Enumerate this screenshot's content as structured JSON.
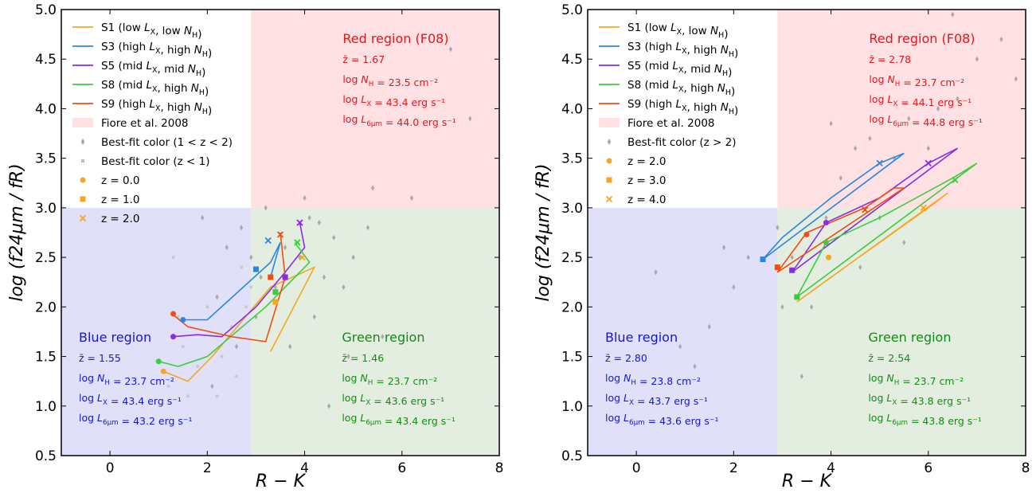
{
  "chart_data": [
    {
      "type": "scatter",
      "panel": "left",
      "xlabel": "R − K",
      "ylabel": "log (f24μm / fR)",
      "xlim": [
        -1,
        8
      ],
      "ylim": [
        0.5,
        5.0
      ],
      "xticks": [
        "0",
        "2",
        "4",
        "6",
        "8"
      ],
      "yticks": [
        "0.5",
        "1.0",
        "1.5",
        "2.0",
        "2.5",
        "3.0",
        "3.5",
        "4.0",
        "4.5",
        "5.0"
      ],
      "regions": {
        "red": {
          "title": "Red region (F08)",
          "stats": [
            "z̄ = 1.67",
            "log N_H = 23.5 cm⁻²",
            "log L_X = 43.4 erg s⁻¹",
            "log L_6μm = 44.0 erg s⁻¹"
          ]
        },
        "blue": {
          "title": "Blue region",
          "stats": [
            "z̄ = 1.55",
            "log N_H = 23.7 cm⁻²",
            "log L_X = 43.4 erg s⁻¹",
            "log L_6μm = 43.2 erg s⁻¹"
          ]
        },
        "green": {
          "title": "Green region",
          "stats": [
            "z̄ = 1.46",
            "log N_H = 23.7 cm⁻²",
            "log L_X = 43.6 erg s⁻¹",
            "log L_6μm = 43.4 erg s⁻¹"
          ]
        }
      },
      "legend": [
        {
          "kind": "line",
          "color": "#f5a623",
          "label": "S1 (low L_X, low N_H)"
        },
        {
          "kind": "line",
          "color": "#2b86e0",
          "label": "S3 (high L_X, high N_H)"
        },
        {
          "kind": "line",
          "color": "#8a2be2",
          "label": "S5 (mid L_X, mid N_H)"
        },
        {
          "kind": "line",
          "color": "#3ccc3c",
          "label": "S8 (mid L_X, high N_H)"
        },
        {
          "kind": "line",
          "color": "#f04e12",
          "label": "S9 (high L_X, high N_H)"
        },
        {
          "kind": "patch",
          "color": "#ffe0e3",
          "label": "Fiore et al. 2008"
        },
        {
          "kind": "diamond",
          "color": "#a9a9a9",
          "label": "Best-fit color (1 < z < 2)"
        },
        {
          "kind": "square",
          "color": "#bdbdbd",
          "label": "Best-fit color (z < 1)"
        },
        {
          "kind": "circle",
          "color": "#f5a623",
          "label": "z = 0.0"
        },
        {
          "kind": "squaremk",
          "color": "#f5a623",
          "label": "z = 1.0"
        },
        {
          "kind": "x",
          "color": "#f5a623",
          "label": "z = 2.0"
        }
      ],
      "series": [
        {
          "name": "S1",
          "color": "#f5a623",
          "x": [
            1.1,
            1.6,
            2.1,
            3.3,
            4.2,
            3.3
          ],
          "y": [
            1.35,
            1.25,
            1.5,
            2.2,
            2.4,
            1.55
          ]
        },
        {
          "name": "S3",
          "color": "#2b86e0",
          "x": [
            1.5,
            2.0,
            3.3,
            3.5,
            3.3
          ],
          "y": [
            1.87,
            1.87,
            2.45,
            2.65,
            2.3
          ]
        },
        {
          "name": "S5",
          "color": "#8a2be2",
          "x": [
            1.3,
            1.8,
            2.3,
            3.0,
            3.6,
            4.0,
            3.9
          ],
          "y": [
            1.7,
            1.72,
            1.7,
            2.0,
            2.35,
            2.6,
            2.85
          ]
        },
        {
          "name": "S8",
          "color": "#3ccc3c",
          "x": [
            1.0,
            1.4,
            2.0,
            3.2,
            4.1,
            3.8
          ],
          "y": [
            1.45,
            1.4,
            1.5,
            2.0,
            2.45,
            2.65
          ]
        },
        {
          "name": "S9",
          "color": "#f04e12",
          "x": [
            1.3,
            1.6,
            2.5,
            3.2,
            3.6,
            3.5
          ],
          "y": [
            1.92,
            1.8,
            1.7,
            1.65,
            2.3,
            2.75
          ]
        }
      ],
      "markers": [
        {
          "shape": "circle",
          "color": "#f5a623",
          "x": 1.1,
          "y": 1.35
        },
        {
          "shape": "circle",
          "color": "#3ccc3c",
          "x": 1.0,
          "y": 1.45
        },
        {
          "shape": "circle",
          "color": "#8a2be2",
          "x": 1.3,
          "y": 1.7
        },
        {
          "shape": "circle",
          "color": "#2b86e0",
          "x": 1.5,
          "y": 1.87
        },
        {
          "shape": "circle",
          "color": "#f04e12",
          "x": 1.3,
          "y": 1.93
        },
        {
          "shape": "square",
          "color": "#2b86e0",
          "x": 3.0,
          "y": 2.38
        },
        {
          "shape": "square",
          "color": "#f04e12",
          "x": 3.3,
          "y": 2.3
        },
        {
          "shape": "square",
          "color": "#8a2be2",
          "x": 3.6,
          "y": 2.3
        },
        {
          "shape": "square",
          "color": "#f5a623",
          "x": 3.4,
          "y": 2.05
        },
        {
          "shape": "square",
          "color": "#3ccc3c",
          "x": 3.4,
          "y": 2.15
        },
        {
          "shape": "x",
          "color": "#2b86e0",
          "x": 3.25,
          "y": 2.67
        },
        {
          "shape": "x",
          "color": "#f04e12",
          "x": 3.5,
          "y": 2.73
        },
        {
          "shape": "x",
          "color": "#8a2be2",
          "x": 3.9,
          "y": 2.85
        },
        {
          "shape": "x",
          "color": "#3ccc3c",
          "x": 3.85,
          "y": 2.65
        },
        {
          "shape": "x",
          "color": "#f5a623",
          "x": 3.95,
          "y": 2.5
        }
      ],
      "gray_points": {
        "diamond": [
          [
            1.9,
            2.9
          ],
          [
            2.2,
            2.1
          ],
          [
            2.4,
            2.6
          ],
          [
            2.7,
            2.8
          ],
          [
            2.9,
            2.5
          ],
          [
            3.1,
            2.3
          ],
          [
            3.2,
            3.0
          ],
          [
            3.4,
            2.2
          ],
          [
            3.6,
            2.6
          ],
          [
            3.9,
            2.5
          ],
          [
            4.1,
            2.9
          ],
          [
            4.2,
            1.9
          ],
          [
            4.4,
            2.3
          ],
          [
            4.6,
            2.7
          ],
          [
            4.8,
            2.2
          ],
          [
            5.0,
            2.5
          ],
          [
            5.3,
            2.8
          ],
          [
            5.6,
            1.7
          ],
          [
            6.2,
            3.1
          ],
          [
            7.0,
            4.6
          ],
          [
            7.4,
            3.9
          ],
          [
            4.0,
            3.1
          ],
          [
            3.7,
            1.6
          ],
          [
            4.5,
            1.0
          ],
          [
            2.6,
            1.6
          ],
          [
            2.1,
            1.2
          ],
          [
            3.0,
            1.9
          ],
          [
            5.4,
            3.2
          ],
          [
            4.3,
            2.85
          ],
          [
            4.9,
            1.5
          ]
        ],
        "square": [
          [
            1.3,
            2.5
          ],
          [
            1.5,
            1.6
          ],
          [
            1.8,
            1.4
          ],
          [
            2.0,
            2.0
          ],
          [
            2.3,
            1.5
          ],
          [
            2.5,
            1.8
          ],
          [
            2.7,
            2.4
          ],
          [
            1.2,
            1.2
          ],
          [
            2.9,
            2.2
          ],
          [
            1.4,
            1.9
          ],
          [
            2.2,
            1.1
          ],
          [
            2.6,
            1.3
          ],
          [
            1.6,
            1.1
          ],
          [
            2.8,
            2.0
          ]
        ]
      }
    },
    {
      "type": "scatter",
      "panel": "right",
      "xlabel": "R − K",
      "ylabel": "log (f24μm / fR)",
      "xlim": [
        -1,
        8
      ],
      "ylim": [
        0.5,
        5.0
      ],
      "xticks": [
        "0",
        "2",
        "4",
        "6",
        "8"
      ],
      "yticks": [
        "0.5",
        "1.0",
        "1.5",
        "2.0",
        "2.5",
        "3.0",
        "3.5",
        "4.0",
        "4.5",
        "5.0"
      ],
      "regions": {
        "red": {
          "title": "Red region (F08)",
          "stats": [
            "z̄ = 2.78",
            "log N_H = 23.7 cm⁻²",
            "log L_X = 44.1 erg s⁻¹",
            "log L_6μm = 44.8 erg s⁻¹"
          ]
        },
        "blue": {
          "title": "Blue region",
          "stats": [
            "z̄ = 2.80",
            "log N_H = 23.8 cm⁻²",
            "log L_X = 43.7 erg s⁻¹",
            "log L_6μm = 43.6 erg s⁻¹"
          ]
        },
        "green": {
          "title": "Green region",
          "stats": [
            "z̄ = 2.54",
            "log N_H = 23.7 cm⁻²",
            "log L_X = 43.8 erg s⁻¹",
            "log L_6μm = 43.8 erg s⁻¹"
          ]
        }
      },
      "legend": [
        {
          "kind": "line",
          "color": "#f5a623",
          "label": "S1 (low L_X, low N_H)"
        },
        {
          "kind": "line",
          "color": "#2b86e0",
          "label": "S3 (high L_X, high N_H)"
        },
        {
          "kind": "line",
          "color": "#8a2be2",
          "label": "S5 (mid L_X, mid N_H)"
        },
        {
          "kind": "line",
          "color": "#3ccc3c",
          "label": "S8 (mid L_X, high N_H)"
        },
        {
          "kind": "line",
          "color": "#f04e12",
          "label": "S9 (high L_X, high N_H)"
        },
        {
          "kind": "patch",
          "color": "#ffe0e3",
          "label": "Fiore et al. 2008"
        },
        {
          "kind": "diamond",
          "color": "#a9a9a9",
          "label": "Best-fit color (z > 2)"
        },
        {
          "kind": "circle",
          "color": "#f5a623",
          "label": "z = 2.0"
        },
        {
          "kind": "squaremk",
          "color": "#f5a623",
          "label": "z = 3.0"
        },
        {
          "kind": "x",
          "color": "#f5a623",
          "label": "z = 4.0"
        }
      ],
      "series": [
        {
          "name": "S1",
          "color": "#f5a623",
          "x": [
            3.3,
            4.0,
            5.0,
            6.0,
            6.4,
            3.3
          ],
          "y": [
            2.05,
            2.3,
            2.65,
            3.0,
            3.15,
            2.05
          ]
        },
        {
          "name": "S3",
          "color": "#2b86e0",
          "x": [
            2.6,
            3.0,
            4.0,
            5.0,
            5.5,
            2.6
          ],
          "y": [
            2.48,
            2.7,
            3.1,
            3.45,
            3.55,
            2.48
          ]
        },
        {
          "name": "S5",
          "color": "#8a2be2",
          "x": [
            3.2,
            3.9,
            5.0,
            6.0,
            6.6,
            3.2
          ],
          "y": [
            2.35,
            2.85,
            3.1,
            3.45,
            3.6,
            2.35
          ]
        },
        {
          "name": "S8",
          "color": "#3ccc3c",
          "x": [
            3.3,
            3.9,
            5.0,
            6.5,
            7.0,
            3.3
          ],
          "y": [
            2.1,
            2.65,
            2.9,
            3.3,
            3.45,
            2.1
          ]
        },
        {
          "name": "S9",
          "color": "#f04e12",
          "x": [
            2.9,
            3.5,
            4.7,
            5.3,
            5.5,
            2.9
          ],
          "y": [
            2.35,
            2.75,
            3.0,
            3.2,
            3.2,
            2.35
          ]
        }
      ],
      "markers": [
        {
          "shape": "circle",
          "color": "#f5a623",
          "x": 3.95,
          "y": 2.5
        },
        {
          "shape": "circle",
          "color": "#3ccc3c",
          "x": 3.9,
          "y": 2.65
        },
        {
          "shape": "circle",
          "color": "#8a2be2",
          "x": 3.9,
          "y": 2.85
        },
        {
          "shape": "circle",
          "color": "#f04e12",
          "x": 3.5,
          "y": 2.73
        },
        {
          "shape": "square",
          "color": "#2b86e0",
          "x": 2.6,
          "y": 2.48
        },
        {
          "shape": "square",
          "color": "#f04e12",
          "x": 2.9,
          "y": 2.4
        },
        {
          "shape": "square",
          "color": "#8a2be2",
          "x": 3.2,
          "y": 2.37
        },
        {
          "shape": "square",
          "color": "#3ccc3c",
          "x": 3.3,
          "y": 2.1
        },
        {
          "shape": "x",
          "color": "#2b86e0",
          "x": 5.0,
          "y": 3.45
        },
        {
          "shape": "x",
          "color": "#8a2be2",
          "x": 6.0,
          "y": 3.45
        },
        {
          "shape": "x",
          "color": "#3ccc3c",
          "x": 6.55,
          "y": 3.28
        },
        {
          "shape": "x",
          "color": "#f04e12",
          "x": 4.7,
          "y": 2.98
        },
        {
          "shape": "x",
          "color": "#f5a623",
          "x": 5.9,
          "y": 3.0
        }
      ],
      "gray_points": {
        "diamond": [
          [
            0.4,
            2.35
          ],
          [
            0.9,
            1.6
          ],
          [
            1.5,
            1.8
          ],
          [
            2.0,
            2.2
          ],
          [
            2.3,
            2.5
          ],
          [
            2.9,
            2.8
          ],
          [
            3.2,
            2.5
          ],
          [
            3.6,
            2.0
          ],
          [
            3.9,
            2.9
          ],
          [
            4.2,
            3.3
          ],
          [
            4.5,
            3.6
          ],
          [
            4.8,
            3.7
          ],
          [
            5.0,
            2.9
          ],
          [
            5.3,
            3.5
          ],
          [
            5.6,
            3.9
          ],
          [
            6.0,
            3.6
          ],
          [
            6.2,
            4.0
          ],
          [
            6.6,
            4.1
          ],
          [
            7.0,
            4.5
          ],
          [
            7.5,
            4.7
          ],
          [
            7.8,
            4.3
          ],
          [
            6.5,
            4.95
          ],
          [
            4.0,
            3.85
          ],
          [
            3.4,
            1.3
          ],
          [
            5.5,
            2.65
          ],
          [
            4.6,
            2.4
          ],
          [
            3.0,
            2.0
          ],
          [
            1.2,
            1.4
          ],
          [
            1.8,
            2.6
          ],
          [
            4.3,
            2.75
          ]
        ],
        "square": []
      }
    }
  ]
}
